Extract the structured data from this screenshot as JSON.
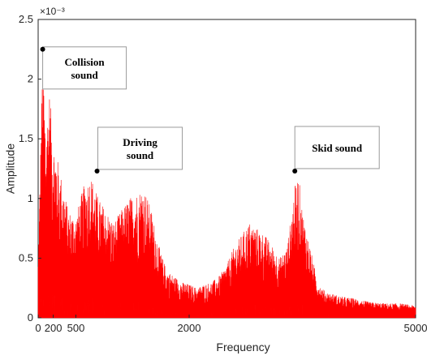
{
  "chart_data": {
    "type": "area",
    "title": "",
    "xlabel": "Frequency",
    "ylabel": "Amplitude",
    "y_exponent_label": "×10⁻³",
    "xlim": [
      0,
      5000
    ],
    "ylim": [
      0,
      0.0025
    ],
    "x_ticks": [
      {
        "value": 0,
        "label": "0"
      },
      {
        "value": 200,
        "label": "200"
      },
      {
        "value": 500,
        "label": "500"
      },
      {
        "value": 2000,
        "label": "2000"
      },
      {
        "value": 5000,
        "label": "5000"
      }
    ],
    "y_ticks": [
      {
        "value": 0,
        "label": "0"
      },
      {
        "value": 0.0005,
        "label": "0.5"
      },
      {
        "value": 0.001,
        "label": "1"
      },
      {
        "value": 0.0015,
        "label": "1.5"
      },
      {
        "value": 0.002,
        "label": "2"
      },
      {
        "value": 0.0025,
        "label": "2.5"
      }
    ],
    "grid": false,
    "series": [
      {
        "color": "#ff0000",
        "envelope": {
          "x": [
            0,
            60,
            100,
            150,
            200,
            250,
            300,
            400,
            500,
            600,
            700,
            800,
            900,
            1000,
            1100,
            1200,
            1300,
            1400,
            1500,
            1600,
            1700,
            1800,
            1900,
            2000,
            2100,
            2200,
            2300,
            2400,
            2500,
            2600,
            2700,
            2800,
            2900,
            3000,
            3100,
            3200,
            3300,
            3400,
            3450,
            3500,
            3600,
            3700,
            3800,
            4000,
            4200,
            4400,
            4600,
            4800,
            5000
          ],
          "y": [
            0.0005,
            0.00225,
            0.0016,
            0.0019,
            0.0015,
            0.00135,
            0.0012,
            0.0009,
            0.00085,
            0.0011,
            0.0012,
            0.001,
            0.0009,
            0.0008,
            0.0009,
            0.001,
            0.00105,
            0.0011,
            0.0009,
            0.0006,
            0.0004,
            0.00035,
            0.0003,
            0.00028,
            0.00025,
            0.00028,
            0.0003,
            0.00035,
            0.00045,
            0.0006,
            0.0007,
            0.0008,
            0.00075,
            0.0007,
            0.0006,
            0.0005,
            0.0006,
            0.0011,
            0.0012,
            0.0009,
            0.0006,
            0.0003,
            0.00022,
            0.00018,
            0.00016,
            0.00013,
            0.00012,
            0.00012,
            0.0001
          ]
        }
      }
    ],
    "annotations": [
      {
        "lines": [
          "Collision",
          "sound"
        ],
        "x": 60,
        "y": 0.00225
      },
      {
        "lines": [
          "Driving",
          "sound"
        ],
        "x": 780,
        "y": 0.00123
      },
      {
        "lines": [
          "Skid sound"
        ],
        "x": 3400,
        "y": 0.00123
      }
    ]
  }
}
